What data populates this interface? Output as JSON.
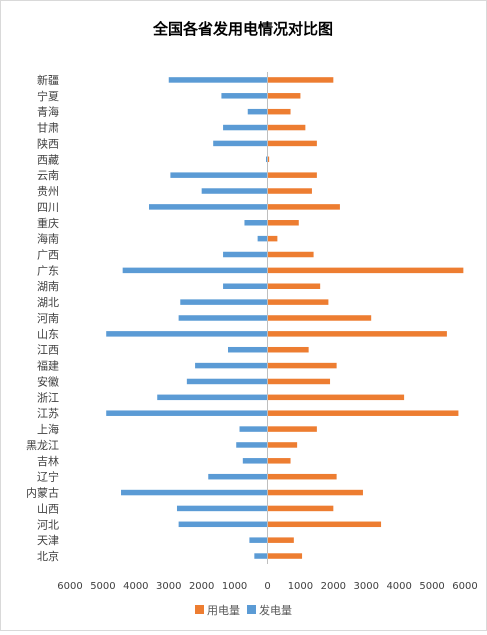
{
  "chart_data": {
    "type": "bar",
    "orientation": "horizontal",
    "layout": "diverging",
    "title": "全国各省发用电情况对比图",
    "categories": [
      "新疆",
      "宁夏",
      "青海",
      "甘肃",
      "陕西",
      "西藏",
      "云南",
      "贵州",
      "四川",
      "重庆",
      "海南",
      "广西",
      "广东",
      "湖南",
      "湖北",
      "河南",
      "山东",
      "江西",
      "福建",
      "安徽",
      "浙江",
      "江苏",
      "上海",
      "黑龙江",
      "吉林",
      "辽宁",
      "内蒙古",
      "山西",
      "河北",
      "天津",
      "北京"
    ],
    "series": [
      {
        "name": "用电量",
        "color": "#ED7D31",
        "direction": "right",
        "values": [
          2000,
          1000,
          700,
          1150,
          1500,
          50,
          1500,
          1350,
          2200,
          950,
          300,
          1400,
          5950,
          1600,
          1850,
          3150,
          5450,
          1250,
          2100,
          1900,
          4150,
          5800,
          1500,
          900,
          700,
          2100,
          2900,
          2000,
          3450,
          800,
          1050
        ]
      },
      {
        "name": "发电量",
        "color": "#5B9BD5",
        "direction": "left",
        "values": [
          3000,
          1400,
          600,
          1350,
          1650,
          30,
          2950,
          2000,
          3600,
          700,
          300,
          1350,
          4400,
          1350,
          2650,
          2700,
          4900,
          1200,
          2200,
          2450,
          3350,
          4900,
          850,
          950,
          750,
          1800,
          4450,
          2750,
          2700,
          550,
          400
        ]
      }
    ],
    "x_tick_labels": [
      "6000",
      "5000",
      "4000",
      "3000",
      "2000",
      "1000",
      "0",
      "1000",
      "2000",
      "3000",
      "4000",
      "5000",
      "6000"
    ],
    "xlim": [
      -6000,
      6000
    ],
    "grid": false,
    "legend": {
      "position": "bottom",
      "items": [
        "用电量",
        "发电量"
      ]
    }
  }
}
